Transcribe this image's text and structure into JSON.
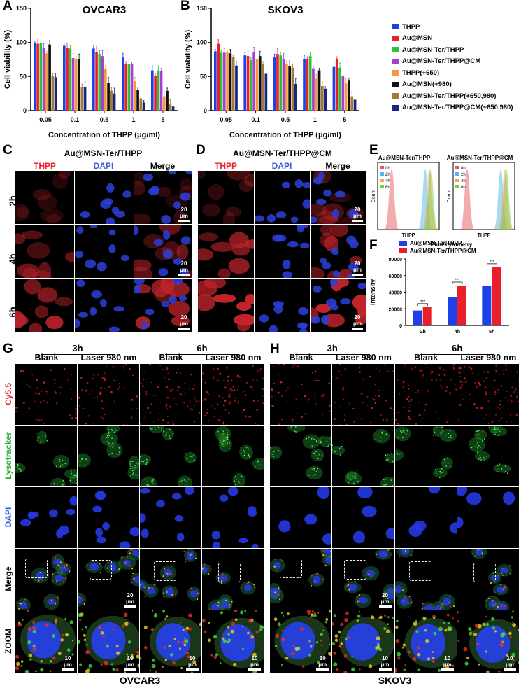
{
  "panels": {
    "A": "A",
    "B": "B",
    "C": "C",
    "D": "D",
    "E": "E",
    "F": "F",
    "G": "G",
    "H": "H"
  },
  "legend": {
    "items": [
      {
        "label": "THPP",
        "color": "#1f3fe8"
      },
      {
        "label": "Au@MSN",
        "color": "#e8202a"
      },
      {
        "label": "Au@MSN-Ter/THPP",
        "color": "#2fbf3a"
      },
      {
        "label": "Au@MSN-Ter/THPP@CM",
        "color": "#a63fd8"
      },
      {
        "label": "THPP(+650)",
        "color": "#f59a3a"
      },
      {
        "label": "Au@MSN(+980)",
        "color": "#111111"
      },
      {
        "label": "Au@MSN-Ter/THPP(+650,980)",
        "color": "#a07a3a"
      },
      {
        "label": "Au@MSN-Ter/THPP@CM(+650,980)",
        "color": "#1a237e"
      }
    ]
  },
  "chart_data": [
    {
      "type": "bar",
      "title": "OVCAR3",
      "xlabel": "Concentration of THPP (μg/ml)",
      "ylabel": "Cell viability (%)",
      "ylim": [
        0,
        150
      ],
      "yticks": [
        "0",
        "50",
        "100",
        "150"
      ],
      "categories": [
        "0.05",
        "0.1",
        "0.5",
        "1",
        "5"
      ],
      "series": [
        {
          "name": "THPP",
          "values": [
            99,
            95,
            91,
            78,
            59
          ]
        },
        {
          "name": "Au@MSN",
          "values": [
            98,
            92,
            86,
            69,
            51
          ]
        },
        {
          "name": "Au@MSN-Ter/THPP",
          "values": [
            99,
            91,
            83,
            68,
            59
          ]
        },
        {
          "name": "Au@MSN-Ter/THPP@CM",
          "values": [
            92,
            77,
            80,
            68,
            58
          ]
        },
        {
          "name": "THPP(+650)",
          "values": [
            84,
            76,
            61,
            43,
            21
          ]
        },
        {
          "name": "Au@MSN(+980)",
          "values": [
            97,
            76,
            41,
            30,
            29
          ]
        },
        {
          "name": "Au@MSN-Ter/THPP(+650,980)",
          "values": [
            51,
            35,
            29,
            18,
            9
          ]
        },
        {
          "name": "Au@MSN-Ter/THPP@CM(+650,980)",
          "values": [
            49,
            35,
            25,
            12,
            6
          ]
        }
      ]
    },
    {
      "type": "bar",
      "title": "SKOV3",
      "xlabel": "Concentration of THPP (μg/ml)",
      "ylabel": "Cell viability (%)",
      "ylim": [
        0,
        150
      ],
      "yticks": [
        "0",
        "50",
        "100",
        "150"
      ],
      "categories": [
        "0.05",
        "0.1",
        "0.5",
        "1",
        "5"
      ],
      "series": [
        {
          "name": "THPP",
          "values": [
            87,
            81,
            78,
            75,
            64
          ]
        },
        {
          "name": "Au@MSN",
          "values": [
            98,
            80,
            83,
            76,
            75
          ]
        },
        {
          "name": "Au@MSN-Ter/THPP",
          "values": [
            85,
            74,
            81,
            80,
            63
          ]
        },
        {
          "name": "Au@MSN-Ter/THPP@CM",
          "values": [
            85,
            86,
            76,
            62,
            51
          ]
        },
        {
          "name": "THPP(+650)",
          "values": [
            85,
            75,
            68,
            47,
            40
          ]
        },
        {
          "name": "Au@MSN(+980)",
          "values": [
            84,
            80,
            65,
            59,
            44
          ]
        },
        {
          "name": "Au@MSN-Ter/THPP(+650,980)",
          "values": [
            78,
            68,
            63,
            36,
            21
          ]
        },
        {
          "name": "Au@MSN-Ter/THPP@CM(+650,980)",
          "values": [
            66,
            54,
            39,
            32,
            16
          ]
        }
      ]
    },
    {
      "type": "bar",
      "title": "Flow cytometry",
      "xlabel": "",
      "ylabel": "Intensity",
      "ylim": [
        0,
        80000
      ],
      "yticks": [
        "0",
        "20000",
        "40000",
        "60000",
        "80000"
      ],
      "categories": [
        "2h",
        "4h",
        "6h"
      ],
      "significance": "***",
      "series": [
        {
          "name": "Au@MSN-Ter/THPP",
          "color": "#1f3fe8",
          "values": [
            18000,
            34500,
            47500
          ]
        },
        {
          "name": "Au@MSN-Ter/THPP@CM",
          "color": "#e8202a",
          "values": [
            22000,
            48000,
            70000
          ]
        }
      ]
    }
  ],
  "flow": {
    "left_title": "Au@MSN-Ter/THPP",
    "right_title": "Au@MSN-Ter/THPP@CM",
    "ylabel": "Count",
    "xlabel": "THPP",
    "legend": [
      {
        "label": "0h",
        "color": "#e8595f"
      },
      {
        "label": "2h",
        "color": "#4fb8f0"
      },
      {
        "label": "4h",
        "color": "#f5a54a"
      },
      {
        "label": "6h",
        "color": "#7cc84a"
      }
    ]
  },
  "panelC": {
    "title": "Au@MSN-Ter/THPP",
    "cols": [
      {
        "label": "THPP",
        "color": "#e8202a"
      },
      {
        "label": "DAPI",
        "color": "#3a62d8"
      },
      {
        "label": "Merge",
        "color": "#000000"
      }
    ],
    "rows": [
      "2h",
      "4h",
      "6h"
    ],
    "scale": "20 μm"
  },
  "panelD": {
    "title": "Au@MSN-Ter/THPP@CM",
    "cols": [
      {
        "label": "THPP",
        "color": "#e8202a"
      },
      {
        "label": "DAPI",
        "color": "#3a62d8"
      },
      {
        "label": "Merge",
        "color": "#000000"
      }
    ]
  },
  "panelG": {
    "times": [
      "3h",
      "6h"
    ],
    "cols": [
      "Blank",
      "Laser 980 nm",
      "Blank",
      "Laser 980 nm"
    ],
    "footer": "OVCAR3"
  },
  "panelH": {
    "times": [
      "3h",
      "6h"
    ],
    "cols": [
      "Blank",
      "Laser 980 nm",
      "Blank",
      "Laser 980 nm"
    ],
    "footer": "SKOV3"
  },
  "imaging_rows": [
    {
      "label": "Cy5.5",
      "color": "#e8202a"
    },
    {
      "label": "Lysotracker",
      "color": "#2fae3a"
    },
    {
      "label": "DAPI",
      "color": "#3a62d8"
    },
    {
      "label": "Merge",
      "color": "#000000"
    },
    {
      "label": "ZOOM",
      "color": "#000000"
    }
  ],
  "scalebars": {
    "merge": "20 μm",
    "zoom": "10 μm"
  }
}
